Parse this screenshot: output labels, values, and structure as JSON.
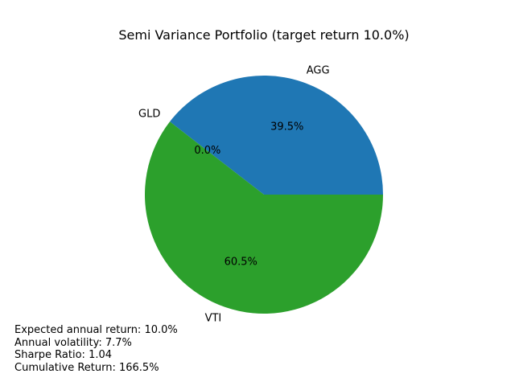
{
  "chart_data": {
    "type": "pie",
    "title": "Semi Variance Portfolio (target return 10.0%)",
    "slices": [
      {
        "label": "AGG",
        "value": 39.5,
        "pct_label": "39.5%",
        "color": "#1f77b4"
      },
      {
        "label": "GLD",
        "value": 0.0,
        "pct_label": "0.0%",
        "color": "#ff7f0e"
      },
      {
        "label": "VTI",
        "value": 60.5,
        "pct_label": "60.5%",
        "color": "#2ca02c"
      }
    ],
    "start_angle_deg": 0,
    "direction": "counterclockwise"
  },
  "stats": [
    "Expected annual return: 10.0%",
    "Annual volatility: 7.7%",
    "Sharpe Ratio: 1.04",
    "Cumulative Return: 166.5%"
  ]
}
